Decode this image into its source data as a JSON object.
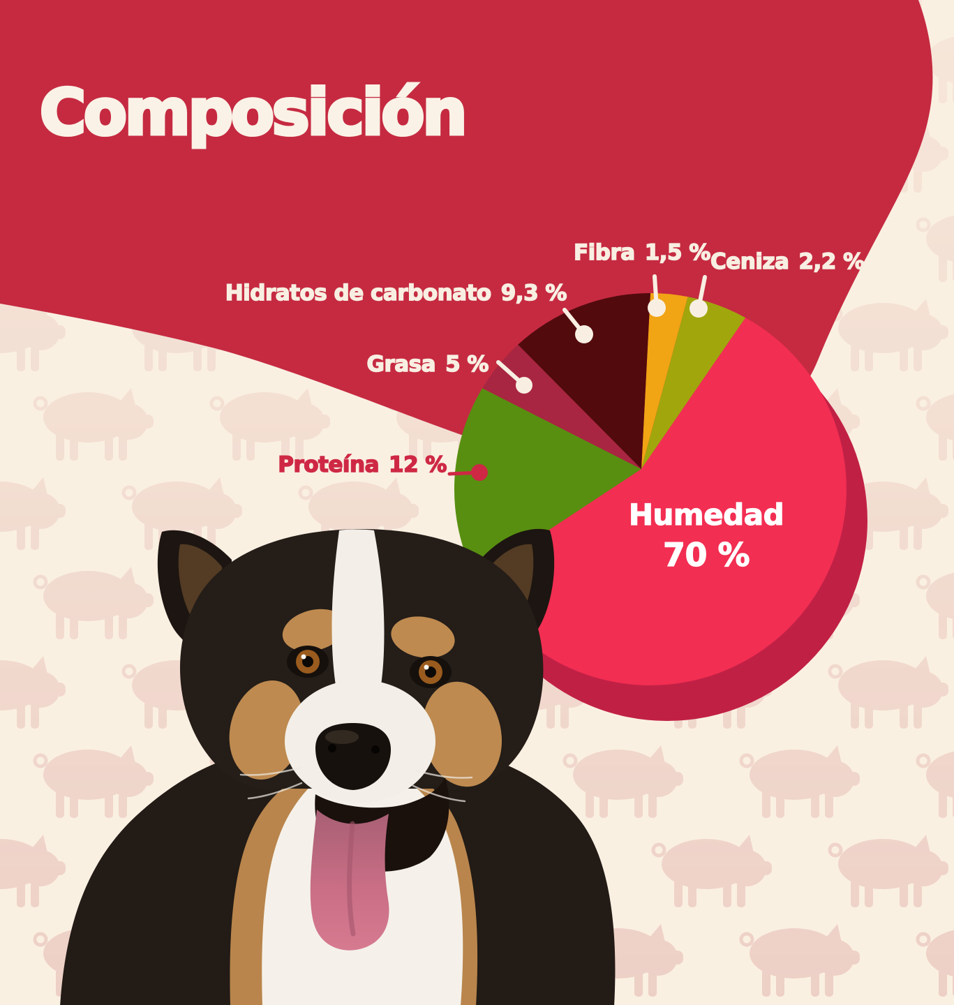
{
  "page": {
    "title": "Composición"
  },
  "chart_data": {
    "type": "pie",
    "title": "Composición",
    "unit": "%",
    "decimal_separator": ",",
    "legend_position": "callout-labels",
    "style": "flat pie with dark offset 3d base, callout dots and lines",
    "slices": [
      {
        "label": "Fibra",
        "value": 1.5,
        "display": "1,5 %",
        "color": "#F1A414",
        "drawn_start_deg": 0,
        "drawn_end_deg": 11,
        "callout": "line-top"
      },
      {
        "label": "Ceniza",
        "value": 2.2,
        "display": "2,2 %",
        "color": "#A1A60D",
        "drawn_start_deg": 11,
        "drawn_end_deg": 29,
        "callout": "line-top"
      },
      {
        "label": "Humedad",
        "value": 70,
        "display": "70 %",
        "color": "#F22E52",
        "drawn_start_deg": 29,
        "drawn_end_deg": 243,
        "callout": "inside"
      },
      {
        "label": "Proteína",
        "value": 12,
        "display": "12 %",
        "color": "#588F10",
        "drawn_start_deg": 243,
        "drawn_end_deg": 301,
        "callout": "line-left"
      },
      {
        "label": "Grasa",
        "value": 5,
        "display": "5 %",
        "color": "#A82641",
        "drawn_start_deg": 301,
        "drawn_end_deg": 317.5,
        "callout": "line-upper-left"
      },
      {
        "label": "Hidratos de carbonato",
        "value": 9.3,
        "display": "9,3 %",
        "color": "#520A0D",
        "drawn_start_deg": 317.5,
        "drawn_end_deg": 360,
        "callout": "line-upper-left"
      }
    ]
  },
  "colors": {
    "blob-red": "#C52A41",
    "cream": "#FAF0E2",
    "title-text": "#FAF2E6",
    "callout-text": "#F8EFE2",
    "proteina-label": "#CE2845",
    "humedad-label": "#FFFFFF",
    "pie-base": "#C12045",
    "pig": "#EDCFC5"
  },
  "images": {
    "dog": "tricolor-australian-shepherd-dog-photo-tongue-out",
    "background_pattern": "pig-silhouette-pattern"
  }
}
